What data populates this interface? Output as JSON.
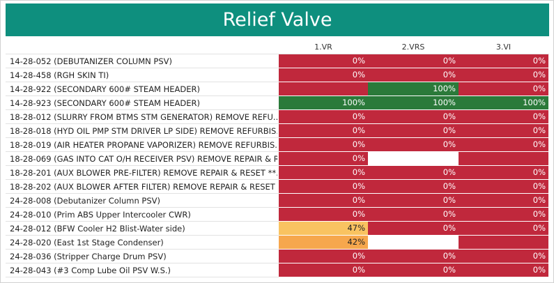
{
  "title": "Relief Valve",
  "columns": [
    "1.VR",
    "2.VRS",
    "3.VI"
  ],
  "rows": [
    {
      "label": "14-28-052 (DEBUTANIZER COLUMN PSV)",
      "cells": [
        {
          "text": "0%",
          "color": "#c0283c"
        },
        {
          "text": "0%",
          "color": "#c0283c"
        },
        {
          "text": "0%",
          "color": "#c0283c"
        }
      ]
    },
    {
      "label": "14-28-458 (RGH SKIN TI)",
      "cells": [
        {
          "text": "0%",
          "color": "#c0283c"
        },
        {
          "text": "0%",
          "color": "#c0283c"
        },
        {
          "text": "0%",
          "color": "#c0283c"
        }
      ]
    },
    {
      "label": "14-28-922 (SECONDARY 600# STEAM HEADER)",
      "cells": [
        {
          "text": null,
          "color": "#c0283c"
        },
        {
          "text": "100%",
          "color": "#2b7a3a"
        },
        {
          "text": "0%",
          "color": "#c0283c"
        }
      ]
    },
    {
      "label": "14-28-923 (SECONDARY 600# STEAM HEADER)",
      "cells": [
        {
          "text": "100%",
          "color": "#2b7a3a"
        },
        {
          "text": "100%",
          "color": "#2b7a3a"
        },
        {
          "text": "100%",
          "color": "#2b7a3a"
        }
      ]
    },
    {
      "label": "18-28-012 (SLURRY FROM BTMS STM GENERATOR) REMOVE REFU..",
      "cells": [
        {
          "text": "0%",
          "color": "#c0283c"
        },
        {
          "text": "0%",
          "color": "#c0283c"
        },
        {
          "text": "0%",
          "color": "#c0283c"
        }
      ]
    },
    {
      "label": "18-28-018 (HYD OIL PMP STM DRIVER LP SIDE) REMOVE REFURBIS..",
      "cells": [
        {
          "text": "0%",
          "color": "#c0283c"
        },
        {
          "text": "0%",
          "color": "#c0283c"
        },
        {
          "text": "0%",
          "color": "#c0283c"
        }
      ]
    },
    {
      "label": "18-28-019 (AIR HEATER PROPANE VAPORIZER) REMOVE REFURBIS..",
      "cells": [
        {
          "text": "0%",
          "color": "#c0283c"
        },
        {
          "text": "0%",
          "color": "#c0283c"
        },
        {
          "text": "0%",
          "color": "#c0283c"
        }
      ]
    },
    {
      "label": "18-28-069 (GAS INTO CAT O/H RECEIVER PSV) REMOVE REPAIR & R..",
      "cells": [
        {
          "text": "0%",
          "color": "#c0283c"
        },
        {
          "text": null,
          "color": "#ffffff"
        },
        {
          "text": null,
          "color": "#c0283c"
        }
      ]
    },
    {
      "label": "18-28-201 (AUX BLOWER PRE-FILTER) REMOVE REPAIR & RESET  **..",
      "cells": [
        {
          "text": "0%",
          "color": "#c0283c"
        },
        {
          "text": "0%",
          "color": "#c0283c"
        },
        {
          "text": "0%",
          "color": "#c0283c"
        }
      ]
    },
    {
      "label": "18-28-202 (AUX BLOWER AFTER FILTER) REMOVE REPAIR & RESET  ..",
      "cells": [
        {
          "text": "0%",
          "color": "#c0283c"
        },
        {
          "text": "0%",
          "color": "#c0283c"
        },
        {
          "text": "0%",
          "color": "#c0283c"
        }
      ]
    },
    {
      "label": "24-28-008 (Debutanizer Column PSV)",
      "cells": [
        {
          "text": "0%",
          "color": "#c0283c"
        },
        {
          "text": "0%",
          "color": "#c0283c"
        },
        {
          "text": "0%",
          "color": "#c0283c"
        }
      ]
    },
    {
      "label": "24-28-010 (Prim ABS Upper Intercooler CWR)",
      "cells": [
        {
          "text": "0%",
          "color": "#c0283c"
        },
        {
          "text": "0%",
          "color": "#c0283c"
        },
        {
          "text": "0%",
          "color": "#c0283c"
        }
      ]
    },
    {
      "label": "24-28-012 (BFW Cooler H2 Blist-Water side)",
      "cells": [
        {
          "text": "47%",
          "color": "#f9c361"
        },
        {
          "text": "0%",
          "color": "#c0283c"
        },
        {
          "text": "0%",
          "color": "#c0283c"
        }
      ]
    },
    {
      "label": "24-28-020 (East 1st Stage Condenser)",
      "cells": [
        {
          "text": "42%",
          "color": "#f6a74d"
        },
        {
          "text": null,
          "color": "#ffffff"
        },
        {
          "text": null,
          "color": "#c0283c"
        }
      ]
    },
    {
      "label": "24-28-036 (Stripper Charge Drum PSV)",
      "cells": [
        {
          "text": "0%",
          "color": "#c0283c"
        },
        {
          "text": "0%",
          "color": "#c0283c"
        },
        {
          "text": "0%",
          "color": "#c0283c"
        }
      ]
    },
    {
      "label": "24-28-043 (#3 Comp Lube Oil PSV W.S.)",
      "cells": [
        {
          "text": "0%",
          "color": "#c0283c"
        },
        {
          "text": "0%",
          "color": "#c0283c"
        },
        {
          "text": "0%",
          "color": "#c0283c"
        }
      ]
    }
  ]
}
